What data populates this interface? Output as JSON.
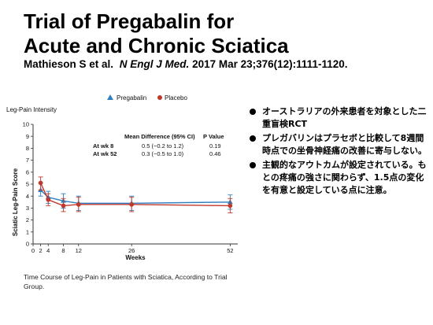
{
  "slide": {
    "title_line1": "Trial of Pregabalin for",
    "title_line2": "Acute and Chronic Sciatica",
    "citation_authors": "Mathieson S et al.",
    "citation_journal": "N Engl J Med.",
    "citation_details": "2017 Mar 23;376(12):1111-1120.",
    "caption": "Time Course of Leg-Pain in Patients with Sciatica, According to Trial Group.",
    "bullets": [
      "オーストラリアの外来患者を対象とした二重盲検RCT",
      "プレガバリンはプラセボと比較して8週間時点での坐骨神経痛の改善に寄与しない。",
      "主観的なアウトカムが設定されている。もとの疼痛の強さに関わらず、1.5点の変化を有意と設定している点に注意。"
    ]
  },
  "chart_data": {
    "type": "line",
    "title": "Leg-Pain Intensity",
    "xlabel": "Weeks",
    "ylabel": "Sciatic Leg-Pain Score",
    "x": [
      0,
      2,
      4,
      8,
      12,
      26,
      52
    ],
    "xticks": [
      0,
      2,
      4,
      8,
      12,
      26,
      52
    ],
    "xlim": [
      0,
      54
    ],
    "ylim": [
      0,
      10
    ],
    "yticks": [
      0,
      1,
      2,
      3,
      4,
      5,
      6,
      7,
      8,
      9,
      10
    ],
    "legend_position": "top",
    "series": [
      {
        "name": "Pregabalin",
        "marker": "triangle",
        "color": "#2f7fc1",
        "points": [
          {
            "x": 2,
            "y": 4.5,
            "lo": 4.0,
            "hi": 5.1
          },
          {
            "x": 4,
            "y": 3.9,
            "lo": 3.4,
            "hi": 4.4
          },
          {
            "x": 8,
            "y": 3.6,
            "lo": 3.0,
            "hi": 4.2
          },
          {
            "x": 12,
            "y": 3.4,
            "lo": 2.8,
            "hi": 4.0
          },
          {
            "x": 26,
            "y": 3.4,
            "lo": 2.8,
            "hi": 4.0
          },
          {
            "x": 52,
            "y": 3.5,
            "lo": 2.9,
            "hi": 4.1
          }
        ]
      },
      {
        "name": "Placebo",
        "marker": "circle",
        "color": "#c0392b",
        "points": [
          {
            "x": 2,
            "y": 5.1,
            "lo": 4.5,
            "hi": 5.6
          },
          {
            "x": 4,
            "y": 3.7,
            "lo": 3.2,
            "hi": 4.2
          },
          {
            "x": 8,
            "y": 3.2,
            "lo": 2.7,
            "hi": 3.8
          },
          {
            "x": 12,
            "y": 3.3,
            "lo": 2.7,
            "hi": 3.9
          },
          {
            "x": 26,
            "y": 3.3,
            "lo": 2.7,
            "hi": 3.9
          },
          {
            "x": 52,
            "y": 3.2,
            "lo": 2.6,
            "hi": 3.8
          }
        ]
      }
    ],
    "table": {
      "headers": [
        "Mean Difference (95% CI)",
        "P Value"
      ],
      "rows": [
        {
          "label": "At wk 8",
          "diff": "0.5 (−0.2 to 1.2)",
          "p": "0.19"
        },
        {
          "label": "At wk 52",
          "diff": "0.3 (−0.5 to 1.0)",
          "p": "0.46"
        }
      ]
    }
  }
}
